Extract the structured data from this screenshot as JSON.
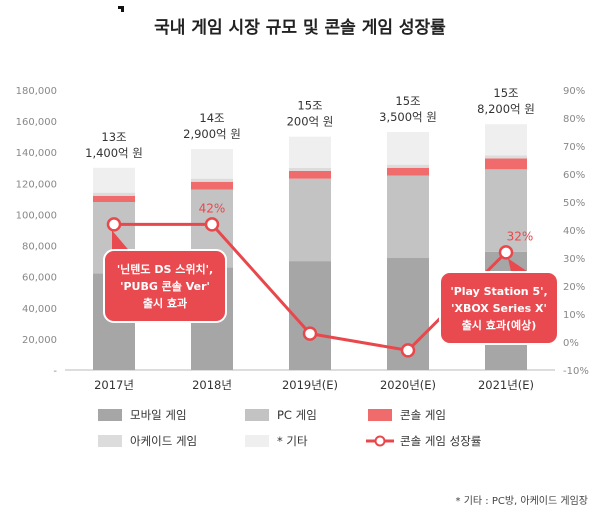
{
  "title": "국내 게임 시장 규모 및 콘솔 게임 성장률",
  "footnote": "* 기타 : PC방, 아케이드 게임장",
  "colors": {
    "mobile": "#a6a6a6",
    "pc": "#c3c3c3",
    "console": "#f06c6c",
    "arcade": "#dcdcdc",
    "other": "#efefef",
    "growth_line": "#e8484c",
    "callout_fill": "#e84a4f",
    "axis_text": "#888888",
    "grid": "#e6e6e6"
  },
  "chart_data": {
    "type": "bar",
    "stacked": true,
    "categories": [
      "2017년",
      "2018년",
      "2019년(E)",
      "2020년(E)",
      "2021년(E)"
    ],
    "series": [
      {
        "name": "모바일 게임",
        "values": [
          62000,
          66000,
          70000,
          72000,
          76000
        ]
      },
      {
        "name": "PC 게임",
        "values": [
          46000,
          50000,
          53000,
          53000,
          53000
        ]
      },
      {
        "name": "콘솔 게임",
        "values": [
          4000,
          5000,
          5000,
          5000,
          7000
        ]
      },
      {
        "name": "아케이드 게임",
        "values": [
          2000,
          2000,
          2000,
          2000,
          2000
        ]
      },
      {
        "name": "* 기타",
        "values": [
          16000,
          19000,
          20000,
          21000,
          20000
        ]
      }
    ],
    "growth_series": {
      "name": "콘솔 게임 성장률",
      "values": [
        42,
        42,
        3,
        -3,
        32
      ],
      "axis": "right"
    },
    "y_left": {
      "min": 0,
      "max": 180000,
      "ticks": [
        "-",
        "20,000",
        "40,000",
        "60,000",
        "80,000",
        "100,000",
        "120,000",
        "140,000",
        "160,000",
        "180,000"
      ]
    },
    "y_right": {
      "min": -10,
      "max": 90,
      "ticks": [
        "-10%",
        "0%",
        "10%",
        "20%",
        "30%",
        "40%",
        "50%",
        "60%",
        "70%",
        "80%",
        "90%"
      ]
    },
    "total_labels": [
      [
        "13조",
        "1,400억 원"
      ],
      [
        "14조",
        "2,900억 원"
      ],
      [
        "15조",
        "200억 원"
      ],
      [
        "15조",
        "3,500억 원"
      ],
      [
        "15조",
        "8,200억 원"
      ]
    ],
    "point_labels": [
      "42%",
      "32%"
    ],
    "callouts": [
      {
        "lines": [
          "'닌텐도 DS 스위치',",
          "'PUBG 콘솔 Ver'",
          "출시 효과"
        ]
      },
      {
        "lines": [
          "'Play Station 5',",
          "'XBOX Series X'",
          "출시 효과(예상)"
        ]
      }
    ],
    "legend": [
      {
        "label": "모바일 게임",
        "kind": "box",
        "color": "mobile"
      },
      {
        "label": "PC 게임",
        "kind": "box",
        "color": "pc"
      },
      {
        "label": "콘솔 게임",
        "kind": "box",
        "color": "console"
      },
      {
        "label": "아케이드 게임",
        "kind": "box",
        "color": "arcade"
      },
      {
        "label": "* 기타",
        "kind": "box",
        "color": "other"
      },
      {
        "label": "콘솔 게임 성장률",
        "kind": "line",
        "color": "growth_line"
      }
    ],
    "legend_position": "bottom",
    "grid": false
  }
}
